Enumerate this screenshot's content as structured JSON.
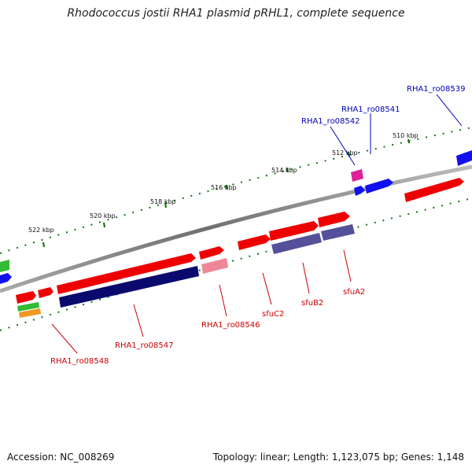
{
  "title": "Rhodococcus jostii RHA1 plasmid pRHL1, complete sequence",
  "footer": {
    "accession": "Accession: NC_008269",
    "topology": "Topology: linear; Length: 1,123,075 bp; Genes: 1,148"
  },
  "ticks": [
    "510 kbp",
    "512 kbp",
    "514 kbp",
    "516 kbp",
    "518 kbp",
    "520 kbp",
    "522 kbp"
  ],
  "labels": {
    "ro08539": "RHA1_ro08539",
    "ro08541": "RHA1_ro08541",
    "ro08542": "RHA1_ro08542",
    "ro08546": "RHA1_ro08546",
    "ro08547": "RHA1_ro08547",
    "ro08548": "RHA1_ro08548",
    "sfuC2": "sfuC2",
    "sfuB2": "sfuB2",
    "sfuA2": "sfuA2"
  },
  "colors": {
    "red": "#ee0000",
    "navy": "#0a0a6e",
    "blue": "#1111ee",
    "purple": "#55509a",
    "pink": "#ee8899",
    "magenta": "#dd2299",
    "green": "#33bb33",
    "orange": "#ee9922",
    "backbone": "#888888",
    "tick": "#117711"
  }
}
